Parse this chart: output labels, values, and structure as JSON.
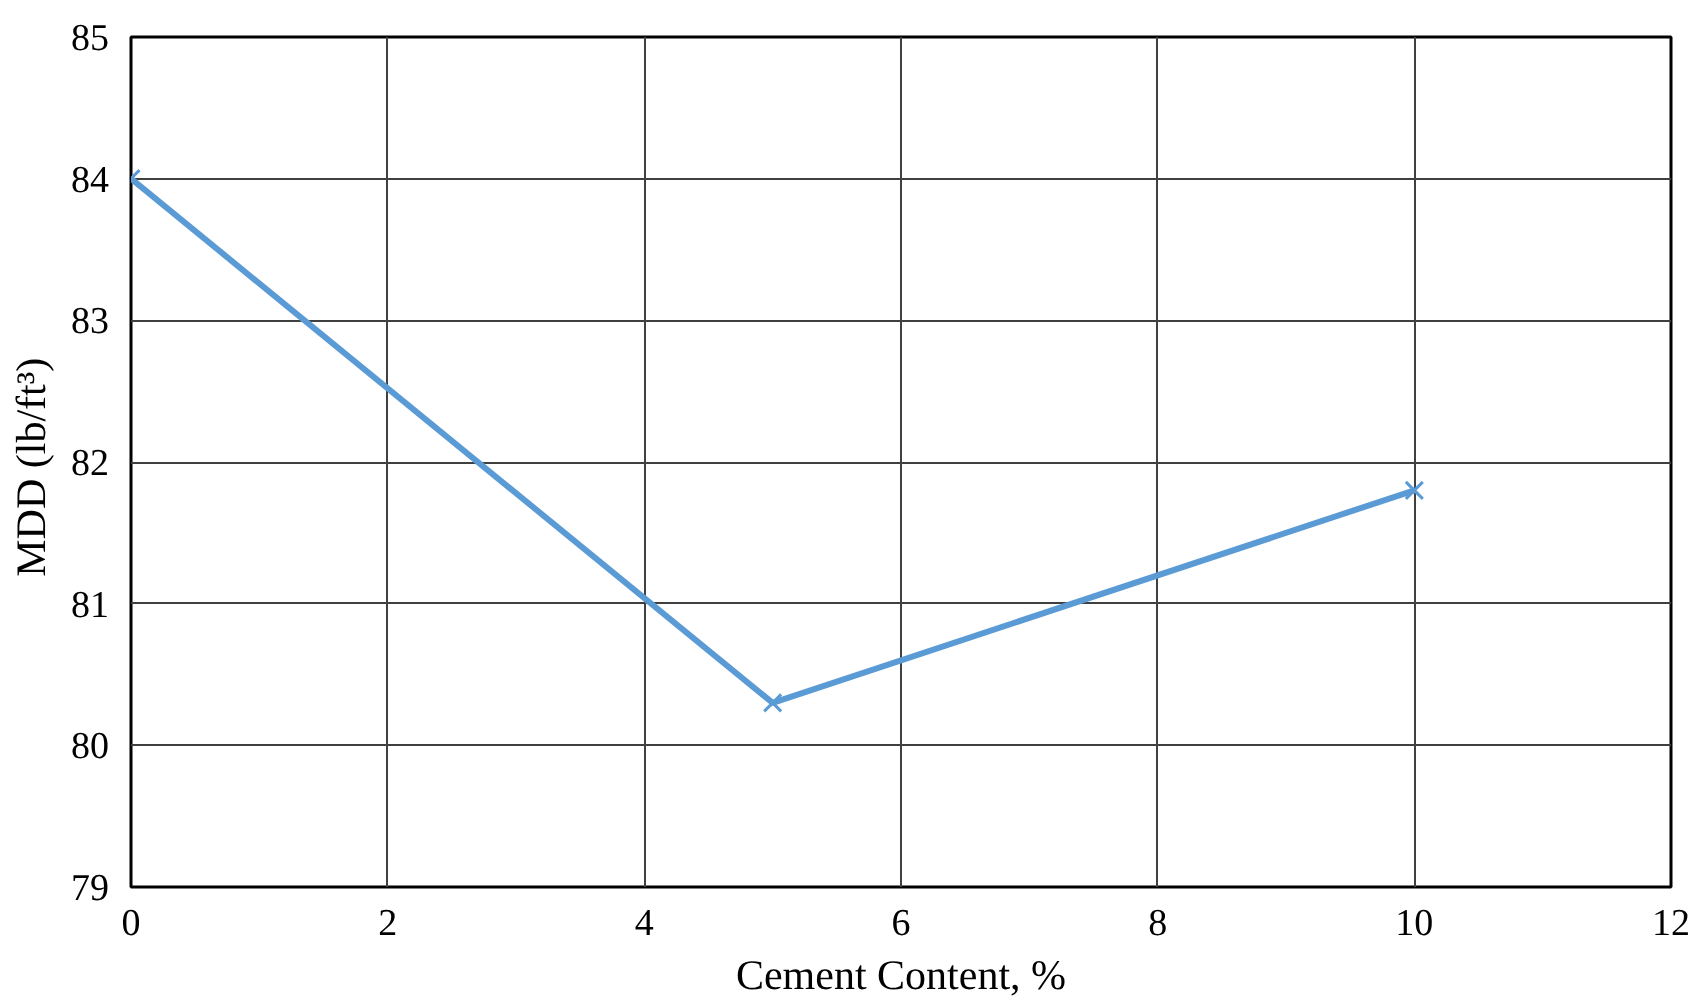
{
  "chart_data": {
    "type": "line",
    "xlabel": "Cement Content, %",
    "ylabel": "MDD  (lb/ft³)",
    "x": [
      0,
      5,
      10
    ],
    "series": [
      {
        "color": "#5b9bd5",
        "values": [
          84,
          80.3,
          81.8
        ]
      }
    ],
    "xlim": [
      0,
      12
    ],
    "xticks": [
      0,
      2,
      4,
      6,
      8,
      10,
      12
    ],
    "ylim": [
      79,
      85
    ],
    "yticks": [
      79,
      80,
      81,
      82,
      83,
      84,
      85
    ],
    "grid": true,
    "marker": "cross",
    "line_style": "solid"
  }
}
